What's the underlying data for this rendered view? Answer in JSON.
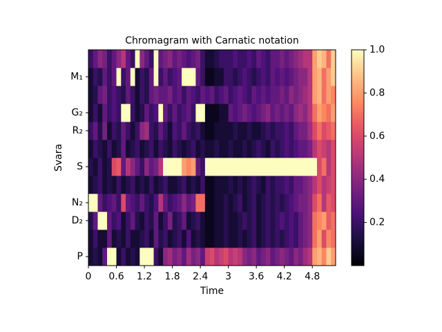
{
  "chart_data": {
    "type": "heatmap",
    "title": "Chromagram with Carnatic notation",
    "xlabel": "Time",
    "ylabel": "Svara",
    "colormap": "magma",
    "categories": [
      "P",
      null,
      "D₂",
      "N₂",
      null,
      "S",
      null,
      "R₂",
      "G₂",
      null,
      "M₁",
      null
    ],
    "x": [
      0,
      0.1,
      0.2,
      0.3,
      0.4,
      0.5,
      0.6,
      0.7,
      0.8,
      0.9,
      1,
      1.1,
      1.2,
      1.3,
      1.4,
      1.5,
      1.6,
      1.7,
      1.8,
      1.9,
      2,
      2.1,
      2.2,
      2.3,
      2.4,
      2.5,
      2.6,
      2.7,
      2.8,
      2.9,
      3,
      3.1,
      3.2,
      3.3,
      3.4,
      3.5,
      3.6,
      3.7,
      3.8,
      3.9,
      4,
      4.1,
      4.2,
      4.3,
      4.4,
      4.5,
      4.6,
      4.7,
      4.8,
      4.9,
      5,
      5.1,
      5.2
    ],
    "xlim": [
      0,
      5.3
    ],
    "xticks": [
      0,
      0.6,
      1.2,
      1.8,
      2.4,
      3,
      3.6,
      4.2,
      4.8
    ],
    "clim": [
      0,
      1
    ],
    "cticks": [
      0.2,
      0.4,
      0.6,
      0.8,
      {
        "value": 1,
        "label": "1.0"
      }
    ],
    "z": [
      [
        0.1,
        0.15,
        0.1,
        0.3,
        1,
        1,
        0.1,
        0.2,
        0.1,
        0.15,
        0.1,
        1,
        1,
        1,
        0.2,
        0.1,
        0.4,
        0.45,
        0.35,
        0.4,
        0.3,
        0.45,
        0.35,
        0.4,
        0.3,
        0.55,
        0.6,
        0.5,
        0.55,
        0.6,
        0.5,
        0.55,
        0.5,
        0.4,
        0.35,
        0.4,
        0.3,
        0.35,
        0.4,
        0.3,
        0.35,
        0.4,
        0.35,
        0.3,
        0.4,
        0.35,
        0.45,
        0.5,
        0.8,
        0.85,
        0.75,
        0.9,
        0.8
      ],
      [
        0.1,
        0.2,
        0.1,
        0.1,
        0.3,
        0.1,
        0.15,
        0.1,
        0.2,
        0.1,
        0.1,
        0.15,
        0.2,
        0.1,
        0.3,
        0.15,
        0.2,
        0.1,
        0.15,
        0.2,
        0.1,
        0.25,
        0.1,
        0.15,
        0.1,
        0.05,
        0.05,
        0.1,
        0.1,
        0.15,
        0.1,
        0.1,
        0.15,
        0.1,
        0.15,
        0.2,
        0.1,
        0.15,
        0.2,
        0.15,
        0.2,
        0.15,
        0.2,
        0.25,
        0.2,
        0.3,
        0.35,
        0.4,
        0.7,
        0.8,
        0.6,
        0.75,
        0.7
      ],
      [
        0.15,
        0.3,
        1,
        1,
        0.3,
        0.2,
        0.25,
        0.1,
        0.2,
        0.3,
        0.15,
        0.1,
        0.2,
        0.15,
        0.3,
        0.1,
        0.2,
        0.35,
        0.15,
        0.2,
        0.3,
        0.1,
        0.15,
        0.2,
        0.1,
        0.05,
        0.05,
        0.1,
        0.1,
        0.15,
        0.1,
        0.1,
        0.15,
        0.2,
        0.15,
        0.2,
        0.1,
        0.15,
        0.2,
        0.15,
        0.2,
        0.25,
        0.2,
        0.25,
        0.2,
        0.3,
        0.35,
        0.4,
        0.7,
        0.75,
        0.8,
        0.65,
        0.7
      ],
      [
        1,
        1,
        0.3,
        0.2,
        0.25,
        0.3,
        0.2,
        0.6,
        0.3,
        0.25,
        0.2,
        0.3,
        0.2,
        0.15,
        0.25,
        0.5,
        0.3,
        0.2,
        0.25,
        0.3,
        0.4,
        0.3,
        0.35,
        0.7,
        0.7,
        0.05,
        0.05,
        0.1,
        0.1,
        0.15,
        0.1,
        0.15,
        0.2,
        0.1,
        0.15,
        0.2,
        0.1,
        0.15,
        0.2,
        0.15,
        0.2,
        0.15,
        0.2,
        0.25,
        0.3,
        0.35,
        0.35,
        0.4,
        0.6,
        0.7,
        0.5,
        0.65,
        0.6
      ],
      [
        0.1,
        0.15,
        0.2,
        0.1,
        0.15,
        0.1,
        0.2,
        0.1,
        0.15,
        0.2,
        0.1,
        0.15,
        0.1,
        0.2,
        0.1,
        0.15,
        0.2,
        0.1,
        0.1,
        0.15,
        0.2,
        0.1,
        0.15,
        0.1,
        0.2,
        0.05,
        0.05,
        0.1,
        0.1,
        0.1,
        0.15,
        0.1,
        0.15,
        0.1,
        0.15,
        0.2,
        0.15,
        0.1,
        0.2,
        0.15,
        0.2,
        0.2,
        0.25,
        0.2,
        0.3,
        0.3,
        0.35,
        0.4,
        0.5,
        0.6,
        0.5,
        0.55,
        0.6
      ],
      [
        0.15,
        0.1,
        0.2,
        0.1,
        0.15,
        0.6,
        0.65,
        0.3,
        0.5,
        0.4,
        0.3,
        0.2,
        0.4,
        0.3,
        0.35,
        0.5,
        1,
        1,
        1,
        1,
        0.8,
        0.75,
        0.8,
        0.3,
        0.2,
        1,
        1,
        1,
        1,
        1,
        1,
        1,
        1,
        1,
        1,
        1,
        1,
        1,
        1,
        1,
        1,
        1,
        1,
        1,
        1,
        1,
        1,
        1,
        1,
        0.6,
        0.7,
        0.5,
        0.6
      ],
      [
        0.1,
        0.2,
        0.15,
        0.1,
        0.2,
        0.1,
        0.15,
        0.3,
        0.1,
        0.15,
        0.2,
        0.1,
        0.15,
        0.2,
        0.1,
        0.2,
        0.15,
        0.1,
        0.2,
        0.15,
        0.1,
        0.15,
        0.2,
        0.1,
        0.15,
        0.1,
        0.1,
        0.15,
        0.1,
        0.1,
        0.15,
        0.1,
        0.1,
        0.15,
        0.1,
        0.15,
        0.2,
        0.15,
        0.1,
        0.2,
        0.15,
        0.2,
        0.25,
        0.2,
        0.25,
        0.3,
        0.3,
        0.35,
        0.5,
        0.6,
        0.55,
        0.5,
        0.6
      ],
      [
        0.2,
        0.3,
        0.15,
        0.35,
        0.1,
        0.2,
        0.15,
        0.3,
        0.2,
        0.1,
        0.2,
        0.4,
        0.45,
        0.2,
        0.15,
        0.3,
        0.2,
        0.1,
        0.25,
        0.2,
        0.3,
        0.2,
        0.15,
        0.2,
        0.1,
        0.05,
        0.05,
        0.1,
        0.1,
        0.1,
        0.1,
        0.15,
        0.1,
        0.1,
        0.15,
        0.1,
        0.1,
        0.15,
        0.2,
        0.15,
        0.2,
        0.2,
        0.25,
        0.2,
        0.3,
        0.35,
        0.35,
        0.45,
        0.6,
        0.7,
        0.6,
        0.65,
        0.7
      ],
      [
        0.1,
        0.2,
        0.1,
        0.3,
        0.2,
        0.25,
        0.2,
        1,
        1,
        0.2,
        0.1,
        0.15,
        0.3,
        0.2,
        0.25,
        1,
        0.3,
        0.2,
        0.3,
        0.2,
        0.25,
        0.3,
        0.2,
        1,
        1,
        0.05,
        0.05,
        0.05,
        0.1,
        0.1,
        0.3,
        0.25,
        0.3,
        0.35,
        0.3,
        0.25,
        0.3,
        0.35,
        0.4,
        0.3,
        0.35,
        0.3,
        0.35,
        0.3,
        0.4,
        0.45,
        0.4,
        0.5,
        0.7,
        0.8,
        0.75,
        0.7,
        0.8
      ],
      [
        0.1,
        0.15,
        0.3,
        0.35,
        0.2,
        0.25,
        0.2,
        0.15,
        0.3,
        0.2,
        0.1,
        0.2,
        0.15,
        0.3,
        0.35,
        0.3,
        0.3,
        0.35,
        0.25,
        0.3,
        0.2,
        0.3,
        0.25,
        0.2,
        0.3,
        0.25,
        0.3,
        0.2,
        0.25,
        0.3,
        0.2,
        0.25,
        0.3,
        0.25,
        0.2,
        0.3,
        0.25,
        0.3,
        0.25,
        0.3,
        0.3,
        0.35,
        0.3,
        0.4,
        0.35,
        0.4,
        0.45,
        0.5,
        0.8,
        0.85,
        0.7,
        0.8,
        0.75
      ],
      [
        0.1,
        0.2,
        0.15,
        0.3,
        0.2,
        0.3,
        1,
        0.2,
        0.3,
        1,
        0.1,
        0.2,
        0.15,
        0.3,
        1,
        0.2,
        0.3,
        0.2,
        0.25,
        0.3,
        1,
        1,
        1,
        0.3,
        0.2,
        0.05,
        0.05,
        0.1,
        0.1,
        0.2,
        0.2,
        0.15,
        0.2,
        0.25,
        0.2,
        0.15,
        0.2,
        0.25,
        0.2,
        0.3,
        0.25,
        0.3,
        0.25,
        0.3,
        0.35,
        0.4,
        0.4,
        0.5,
        0.8,
        0.85,
        0.7,
        0.8,
        0.9
      ],
      [
        0.2,
        0.3,
        0.4,
        0.35,
        0.2,
        0.3,
        0.4,
        0.5,
        0.3,
        0.2,
        1,
        0.4,
        0.3,
        0.2,
        1,
        0.3,
        0.35,
        0.4,
        0.3,
        0.35,
        0.3,
        0.25,
        0.3,
        0.35,
        0.2,
        0.1,
        0.1,
        0.15,
        0.2,
        0.2,
        0.2,
        0.25,
        0.2,
        0.2,
        0.25,
        0.2,
        0.3,
        0.25,
        0.2,
        0.3,
        0.3,
        0.35,
        0.3,
        0.35,
        0.4,
        0.45,
        0.5,
        0.5,
        0.8,
        0.9,
        0.85,
        0.7,
        0.9
      ]
    ]
  }
}
